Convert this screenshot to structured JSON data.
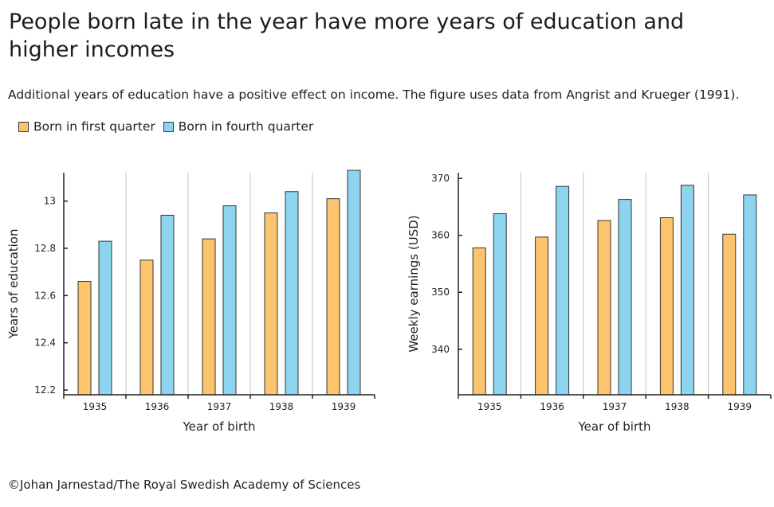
{
  "header": {
    "title": "People born late in the year have more years of education and higher incomes",
    "subtitle": "Additional years of education have a positive effect on income. The figure uses data from Angrist and Krueger (1991)."
  },
  "legend": {
    "first": "Born in first quarter",
    "fourth": "Born in fourth quarter"
  },
  "colors": {
    "first_quarter": "#fcc46c",
    "fourth_quarter": "#8dd4f0",
    "axis": "#222222",
    "separator": "#b8c7cc"
  },
  "credit": "©Johan Jarnestad/The Royal Swedish Academy of Sciences",
  "chart_data": [
    {
      "type": "bar",
      "categories": [
        "1935",
        "1936",
        "1937",
        "1938",
        "1939"
      ],
      "series": [
        {
          "name": "Born in first quarter",
          "values": [
            12.66,
            12.75,
            12.84,
            12.95,
            13.01
          ]
        },
        {
          "name": "Born in fourth quarter",
          "values": [
            12.83,
            12.94,
            12.98,
            13.04,
            13.13
          ]
        }
      ],
      "xlabel": "Year of birth",
      "ylabel": "Years of education",
      "ylim": [
        12.18,
        13.12
      ],
      "yticks": [
        12.2,
        12.4,
        12.6,
        12.8,
        13
      ],
      "ytick_labels": [
        "12.2",
        "12.4",
        "12.6",
        "12.8",
        "13"
      ]
    },
    {
      "type": "bar",
      "categories": [
        "1935",
        "1936",
        "1937",
        "1938",
        "1939"
      ],
      "series": [
        {
          "name": "Born in first quarter",
          "values": [
            357.8,
            359.7,
            362.6,
            363.1,
            360.2
          ]
        },
        {
          "name": "Born in fourth quarter",
          "values": [
            363.8,
            368.6,
            366.3,
            368.8,
            367.1
          ]
        }
      ],
      "xlabel": "Year of birth",
      "ylabel": "Weekly earnings (USD)",
      "ylim": [
        332,
        371
      ],
      "yticks": [
        340,
        350,
        360,
        370
      ],
      "ytick_labels": [
        "340",
        "350",
        "360",
        "370"
      ]
    }
  ]
}
